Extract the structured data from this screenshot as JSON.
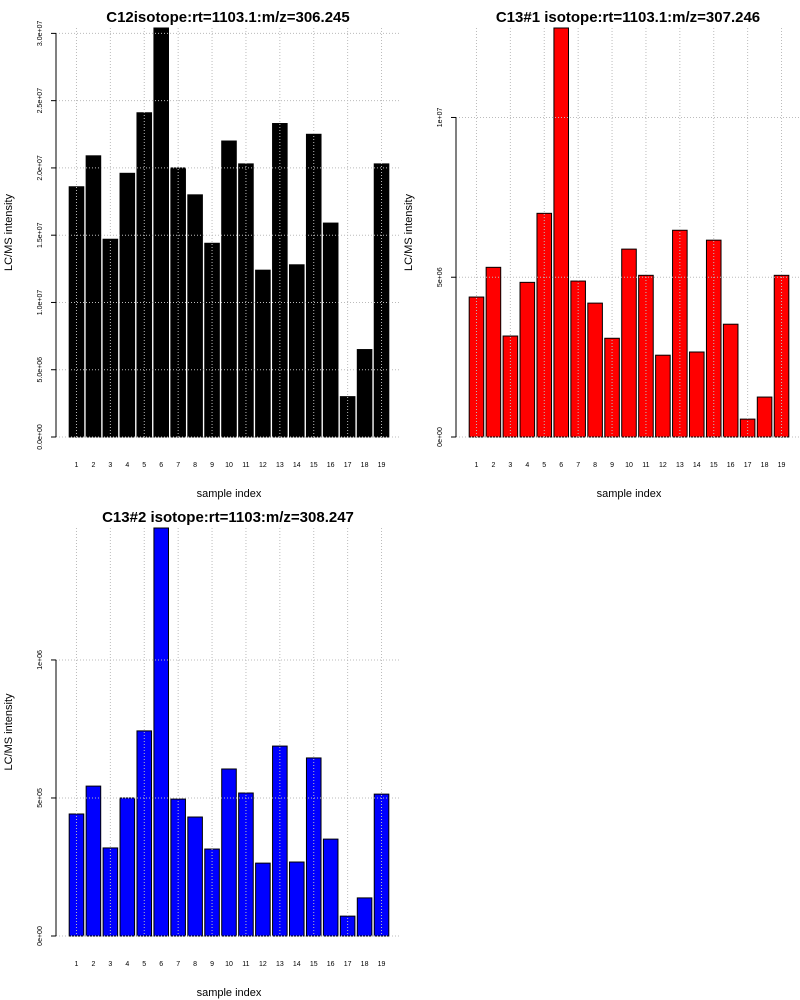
{
  "chart_data": [
    {
      "type": "bar",
      "title": "C12isotope:rt=1103.1:m/z=306.245",
      "xlabel": "sample index",
      "ylabel": "LC/MS intensity",
      "color": "#000000",
      "categories": [
        "1",
        "2",
        "3",
        "4",
        "5",
        "6",
        "7",
        "8",
        "9",
        "10",
        "11",
        "12",
        "13",
        "14",
        "15",
        "16",
        "17",
        "18",
        "19"
      ],
      "values": [
        18600000,
        20900000,
        14700000,
        19600000,
        24100000,
        30400000,
        20000000,
        18000000,
        14400000,
        22000000,
        20300000,
        12400000,
        23300000,
        12800000,
        22500000,
        15900000,
        3000000,
        6500000,
        20300000
      ],
      "yticks": [
        0,
        5000000,
        10000000,
        15000000,
        20000000,
        25000000,
        30000000
      ],
      "ytick_labels": [
        "0.0e+00",
        "5.0e+06",
        "1.0e+07",
        "1.5e+07",
        "2.0e+07",
        "2.5e+07",
        "3.0e+07"
      ],
      "ylim": [
        0,
        30400000
      ],
      "grid": true
    },
    {
      "type": "bar",
      "title": "C13#1 isotope:rt=1103.1:m/z=307.246",
      "xlabel": "sample index",
      "ylabel": "LC/MS intensity",
      "color": "#ff0000",
      "categories": [
        "1",
        "2",
        "3",
        "4",
        "5",
        "6",
        "7",
        "8",
        "9",
        "10",
        "11",
        "12",
        "13",
        "14",
        "15",
        "16",
        "17",
        "18",
        "19"
      ],
      "values": [
        4380000,
        5310000,
        3160000,
        4840000,
        7000000,
        12800000,
        4880000,
        4190000,
        3090000,
        5880000,
        5060000,
        2560000,
        6470000,
        2660000,
        6160000,
        3530000,
        560000,
        1250000,
        5060000
      ],
      "yticks": [
        0,
        5000000,
        10000000
      ],
      "ytick_labels": [
        "0e+00",
        "5e+06",
        "1e+07"
      ],
      "ylim": [
        0,
        12800000
      ],
      "grid": true
    },
    {
      "type": "bar",
      "title": "C13#2 isotope:rt=1103:m/z=308.247",
      "xlabel": "sample index",
      "ylabel": "LC/MS intensity",
      "color": "#0000ff",
      "categories": [
        "1",
        "2",
        "3",
        "4",
        "5",
        "6",
        "7",
        "8",
        "9",
        "10",
        "11",
        "12",
        "13",
        "14",
        "15",
        "16",
        "17",
        "18",
        "19"
      ],
      "values": [
        442000,
        543000,
        319000,
        500000,
        743000,
        1478000,
        496000,
        431000,
        315000,
        605000,
        518000,
        264000,
        688000,
        268000,
        645000,
        351000,
        72000,
        138000,
        514000
      ],
      "yticks": [
        0,
        500000,
        1000000
      ],
      "ytick_labels": [
        "0e+00",
        "5e+05",
        "1e+06"
      ],
      "ylim": [
        0,
        1478000
      ],
      "grid": true
    }
  ]
}
